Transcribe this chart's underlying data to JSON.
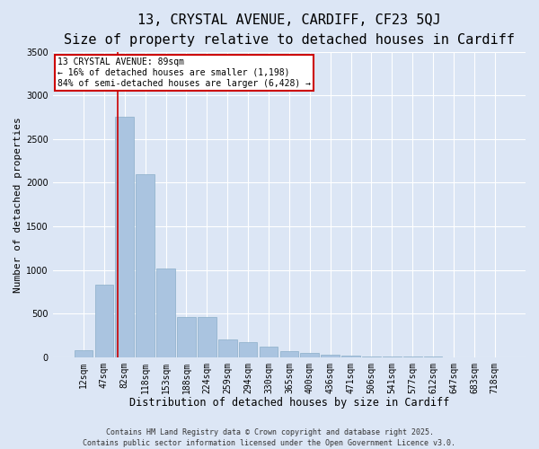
{
  "title1": "13, CRYSTAL AVENUE, CARDIFF, CF23 5QJ",
  "title2": "Size of property relative to detached houses in Cardiff",
  "xlabel": "Distribution of detached houses by size in Cardiff",
  "ylabel": "Number of detached properties",
  "background_color": "#dce6f5",
  "bar_color": "#aac4e0",
  "bar_edge_color": "#8aaec8",
  "grid_color": "#ffffff",
  "fig_background_color": "#dce6f5",
  "categories": [
    "12sqm",
    "47sqm",
    "82sqm",
    "118sqm",
    "153sqm",
    "188sqm",
    "224sqm",
    "259sqm",
    "294sqm",
    "330sqm",
    "365sqm",
    "400sqm",
    "436sqm",
    "471sqm",
    "506sqm",
    "541sqm",
    "577sqm",
    "612sqm",
    "647sqm",
    "683sqm",
    "718sqm"
  ],
  "values": [
    80,
    830,
    2750,
    2100,
    1020,
    460,
    460,
    200,
    170,
    120,
    70,
    50,
    30,
    20,
    10,
    5,
    5,
    3,
    2,
    1,
    1
  ],
  "ylim": [
    0,
    3500
  ],
  "yticks": [
    0,
    500,
    1000,
    1500,
    2000,
    2500,
    3000,
    3500
  ],
  "annotation_title": "13 CRYSTAL AVENUE: 89sqm",
  "annotation_line1": "← 16% of detached houses are smaller (1,198)",
  "annotation_line2": "84% of semi-detached houses are larger (6,428) →",
  "annotation_box_color": "#ffffff",
  "annotation_box_edge_color": "#cc0000",
  "property_line_color": "#cc0000",
  "footer1": "Contains HM Land Registry data © Crown copyright and database right 2025.",
  "footer2": "Contains public sector information licensed under the Open Government Licence v3.0.",
  "title_fontsize": 11,
  "subtitle_fontsize": 9,
  "tick_fontsize": 7,
  "xlabel_fontsize": 8.5,
  "ylabel_fontsize": 8,
  "footer_fontsize": 6,
  "annotation_fontsize": 7
}
